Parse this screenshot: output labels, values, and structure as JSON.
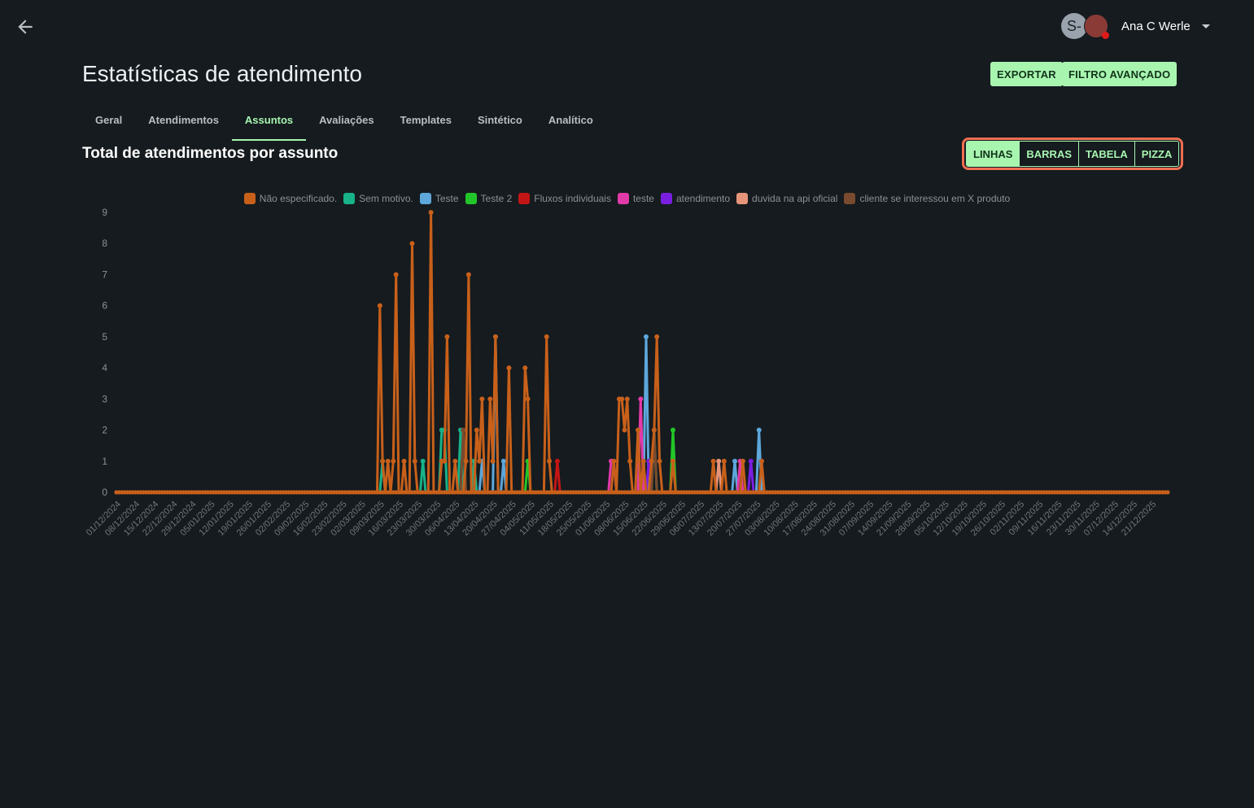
{
  "header": {
    "user_initial": "S-",
    "user_name": "Ana C Werle"
  },
  "page": {
    "title": "Estatísticas de atendimento",
    "export_label": "EXPORTAR",
    "filter_label": "FILTRO AVANÇADO"
  },
  "tabs": [
    {
      "label": "Geral"
    },
    {
      "label": "Atendimentos"
    },
    {
      "label": "Assuntos"
    },
    {
      "label": "Avaliações"
    },
    {
      "label": "Templates"
    },
    {
      "label": "Sintético"
    },
    {
      "label": "Analítico"
    }
  ],
  "active_tab": "Assuntos",
  "section_title": "Total de atendimentos por assunto",
  "view_options": [
    "LINHAS",
    "BARRAS",
    "TABELA",
    "PIZZA"
  ],
  "selected_view": "LINHAS",
  "chart_data": {
    "type": "line",
    "title": "",
    "xlabel": "",
    "ylabel": "",
    "ylim": [
      0,
      9
    ],
    "y_ticks": [
      0,
      1,
      2,
      3,
      4,
      5,
      6,
      7,
      8,
      9
    ],
    "x_range": [
      "2024-12-01",
      "2025-12-27"
    ],
    "x_tick_labels": [
      "01/12/2024",
      "08/12/2024",
      "15/12/2024",
      "22/12/2024",
      "29/12/2024",
      "05/01/2025",
      "12/01/2025",
      "19/01/2025",
      "26/01/2025",
      "02/02/2025",
      "09/02/2025",
      "16/02/2025",
      "23/02/2025",
      "02/03/2025",
      "09/03/2025",
      "16/03/2025",
      "23/03/2025",
      "30/03/2025",
      "06/04/2025",
      "13/04/2025",
      "20/04/2025",
      "27/04/2025",
      "04/05/2025",
      "11/05/2025",
      "18/05/2025",
      "25/05/2025",
      "01/06/2025",
      "08/06/2025",
      "15/06/2025",
      "22/06/2025",
      "29/06/2025",
      "06/07/2025",
      "13/07/2025",
      "20/07/2025",
      "27/07/2025",
      "03/08/2025",
      "10/08/2025",
      "17/08/2025",
      "24/08/2025",
      "31/08/2025",
      "07/09/2025",
      "14/09/2025",
      "21/09/2025",
      "28/09/2025",
      "05/10/2025",
      "12/10/2025",
      "19/10/2025",
      "26/10/2025",
      "02/11/2025",
      "09/11/2025",
      "16/11/2025",
      "23/11/2025",
      "30/11/2025",
      "07/12/2025",
      "14/12/2025",
      "21/12/2025"
    ],
    "legend_position": "top",
    "series": [
      {
        "name": "Não especificado.",
        "color": "#c8601a",
        "points": [
          [
            "2025-03-09",
            6
          ],
          [
            "2025-03-10",
            1
          ],
          [
            "2025-03-12",
            1
          ],
          [
            "2025-03-14",
            1
          ],
          [
            "2025-03-15",
            7
          ],
          [
            "2025-03-18",
            1
          ],
          [
            "2025-03-21",
            8
          ],
          [
            "2025-03-22",
            1
          ],
          [
            "2025-03-28",
            9
          ],
          [
            "2025-04-01",
            1
          ],
          [
            "2025-04-02",
            1
          ],
          [
            "2025-04-03",
            5
          ],
          [
            "2025-04-06",
            1
          ],
          [
            "2025-04-10",
            1
          ],
          [
            "2025-04-11",
            7
          ],
          [
            "2025-04-14",
            2
          ],
          [
            "2025-04-15",
            1
          ],
          [
            "2025-04-16",
            3
          ],
          [
            "2025-04-19",
            3
          ],
          [
            "2025-04-20",
            1
          ],
          [
            "2025-04-21",
            5
          ],
          [
            "2025-04-26",
            4
          ],
          [
            "2025-05-02",
            4
          ],
          [
            "2025-05-03",
            3
          ],
          [
            "2025-05-10",
            5
          ],
          [
            "2025-05-11",
            1
          ],
          [
            "2025-06-04",
            1
          ],
          [
            "2025-06-06",
            3
          ],
          [
            "2025-06-07",
            3
          ],
          [
            "2025-06-08",
            2
          ],
          [
            "2025-06-09",
            3
          ],
          [
            "2025-06-10",
            1
          ],
          [
            "2025-06-13",
            2
          ],
          [
            "2025-06-15",
            1
          ],
          [
            "2025-06-18",
            1
          ],
          [
            "2025-06-19",
            2
          ],
          [
            "2025-06-20",
            5
          ],
          [
            "2025-06-21",
            1
          ],
          [
            "2025-06-26",
            1
          ],
          [
            "2025-07-11",
            1
          ],
          [
            "2025-07-15",
            1
          ],
          [
            "2025-07-22",
            1
          ],
          [
            "2025-07-29",
            1
          ]
        ]
      },
      {
        "name": "Sem motivo.",
        "color": "#17b287",
        "points": [
          [
            "2025-03-10",
            1
          ],
          [
            "2025-03-25",
            1
          ],
          [
            "2025-04-01",
            2
          ],
          [
            "2025-04-02",
            2
          ],
          [
            "2025-04-08",
            2
          ],
          [
            "2025-04-13",
            1
          ],
          [
            "2025-06-19",
            2
          ]
        ]
      },
      {
        "name": "Teste",
        "color": "#5da7db",
        "points": [
          [
            "2025-04-16",
            1
          ],
          [
            "2025-04-21",
            5
          ],
          [
            "2025-04-24",
            1
          ],
          [
            "2025-06-16",
            5
          ],
          [
            "2025-07-19",
            1
          ],
          [
            "2025-07-28",
            2
          ]
        ]
      },
      {
        "name": "Teste 2",
        "color": "#23c629",
        "points": [
          [
            "2025-05-03",
            1
          ],
          [
            "2025-06-26",
            2
          ]
        ]
      },
      {
        "name": "Fluxos individuais",
        "color": "#c41515",
        "points": [
          [
            "2025-05-14",
            1
          ]
        ]
      },
      {
        "name": "teste",
        "color": "#e23aa8",
        "points": [
          [
            "2025-06-03",
            1
          ],
          [
            "2025-06-04",
            1
          ],
          [
            "2025-06-14",
            3
          ],
          [
            "2025-07-21",
            1
          ]
        ]
      },
      {
        "name": "atendimento",
        "color": "#7a1ee0",
        "points": [
          [
            "2025-06-17",
            1
          ],
          [
            "2025-07-25",
            1
          ]
        ]
      },
      {
        "name": "duvida na api oficial",
        "color": "#e7957a",
        "points": [
          [
            "2025-07-13",
            1
          ]
        ]
      },
      {
        "name": "cliente se interessou em X produto",
        "color": "#7a4a2e",
        "points": [
          [
            "2025-04-09",
            2
          ],
          [
            "2025-06-19",
            2
          ]
        ]
      }
    ]
  }
}
